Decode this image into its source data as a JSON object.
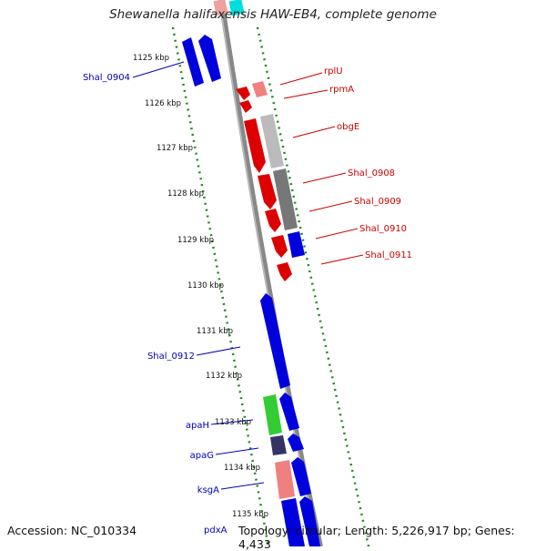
{
  "title": "Shewanella halifaxensis HAW-EB4, complete genome",
  "footer": {
    "accession": "Accession: NC_010334",
    "topology": "Topology: circular; Length: 5,226,917 bp; Genes: 4,433"
  },
  "colors": {
    "forward_strand": "#0000dd",
    "reverse_strand": "#dd0000",
    "backbone": "#888888",
    "tick": "#228822",
    "label_forward": "#0000bb",
    "label_reverse": "#cc0000",
    "green_gene": "#33cc33",
    "navy_gene": "#333366",
    "pink_gene": "#f08080",
    "grey_gene": "#777777",
    "light_grey_gene": "#bbbbbb",
    "cyan_gene": "#00dddd"
  },
  "kbp_ticks": [
    "1125 kbp",
    "1126 kbp",
    "1127 kbp",
    "1128 kbp",
    "1129 kbp",
    "1130 kbp",
    "1131 kbp",
    "1132 kbp",
    "1133 kbp",
    "1134 kbp",
    "1135 kbp"
  ],
  "labels_left": [
    "Shal_0904",
    "Shal_0912",
    "apaH",
    "apaG",
    "ksgA",
    "pdxA"
  ],
  "labels_right": [
    "rplU",
    "rpmA",
    "obgE",
    "Shal_0908",
    "Shal_0909",
    "Shal_0910",
    "Shal_0911"
  ]
}
